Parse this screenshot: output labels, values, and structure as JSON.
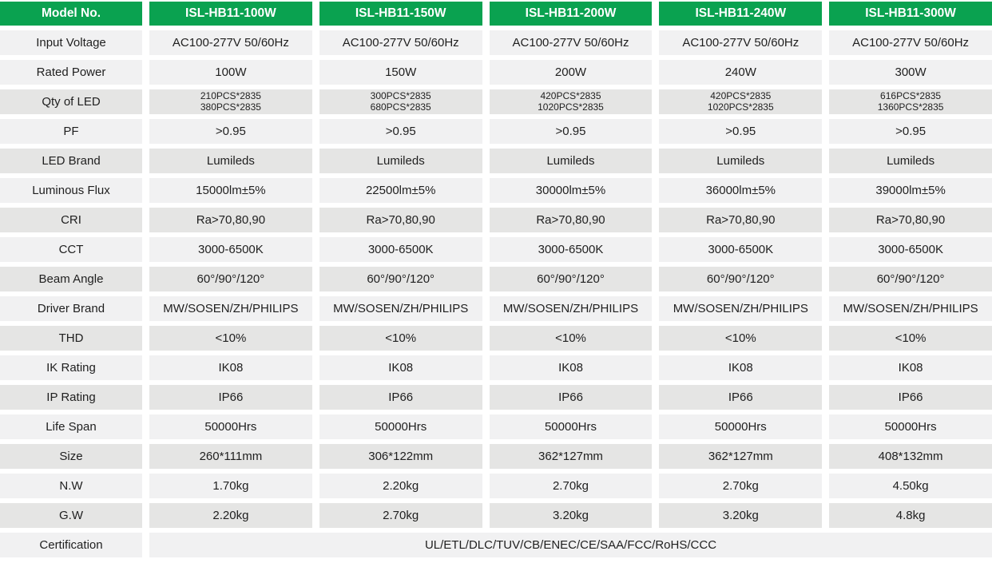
{
  "colors": {
    "header_green": "#0aa250",
    "row_light": "#f1f1f2",
    "row_dark": "#e5e5e4",
    "text_dark": "#1f1f1f",
    "header_text": "#ffffff"
  },
  "table": {
    "header": {
      "label": "Model No.",
      "models": [
        "ISL-HB11-100W",
        "ISL-HB11-150W",
        "ISL-HB11-200W",
        "ISL-HB11-240W",
        "ISL-HB11-300W"
      ]
    },
    "rows": [
      {
        "label": "Input Voltage",
        "values": [
          "AC100-277V 50/60Hz",
          "AC100-277V 50/60Hz",
          "AC100-277V 50/60Hz",
          "AC100-277V 50/60Hz",
          "AC100-277V 50/60Hz"
        ]
      },
      {
        "label": "Rated Power",
        "values": [
          "100W",
          "150W",
          "200W",
          "240W",
          "300W"
        ]
      },
      {
        "label": "Qty of LED",
        "values": [
          "210PCS*2835\n380PCS*2835",
          "300PCS*2835\n680PCS*2835",
          "420PCS*2835\n1020PCS*2835",
          "420PCS*2835\n1020PCS*2835",
          "616PCS*2835\n1360PCS*2835"
        ]
      },
      {
        "label": "PF",
        "values": [
          ">0.95",
          ">0.95",
          ">0.95",
          ">0.95",
          ">0.95"
        ]
      },
      {
        "label": "LED Brand",
        "values": [
          "Lumileds",
          "Lumileds",
          "Lumileds",
          "Lumileds",
          "Lumileds"
        ]
      },
      {
        "label": "Luminous Flux",
        "values": [
          "15000lm±5%",
          "22500lm±5%",
          "30000lm±5%",
          "36000lm±5%",
          "39000lm±5%"
        ]
      },
      {
        "label": "CRI",
        "values": [
          "Ra>70,80,90",
          "Ra>70,80,90",
          "Ra>70,80,90",
          "Ra>70,80,90",
          "Ra>70,80,90"
        ]
      },
      {
        "label": "CCT",
        "values": [
          "3000-6500K",
          "3000-6500K",
          "3000-6500K",
          "3000-6500K",
          "3000-6500K"
        ]
      },
      {
        "label": "Beam Angle",
        "values": [
          "60°/90°/120°",
          "60°/90°/120°",
          "60°/90°/120°",
          "60°/90°/120°",
          "60°/90°/120°"
        ]
      },
      {
        "label": "Driver Brand",
        "values": [
          "MW/SOSEN/ZH/PHILIPS",
          "MW/SOSEN/ZH/PHILIPS",
          "MW/SOSEN/ZH/PHILIPS",
          "MW/SOSEN/ZH/PHILIPS",
          "MW/SOSEN/ZH/PHILIPS"
        ]
      },
      {
        "label": "THD",
        "values": [
          "<10%",
          "<10%",
          "<10%",
          "<10%",
          "<10%"
        ]
      },
      {
        "label": "IK Rating",
        "values": [
          "IK08",
          "IK08",
          "IK08",
          "IK08",
          "IK08"
        ]
      },
      {
        "label": "IP Rating",
        "values": [
          "IP66",
          "IP66",
          "IP66",
          "IP66",
          "IP66"
        ]
      },
      {
        "label": "Life Span",
        "values": [
          "50000Hrs",
          "50000Hrs",
          "50000Hrs",
          "50000Hrs",
          "50000Hrs"
        ]
      },
      {
        "label": "Size",
        "values": [
          "260*111mm",
          "306*122mm",
          "362*127mm",
          "362*127mm",
          "408*132mm"
        ]
      },
      {
        "label": "N.W",
        "values": [
          "1.70kg",
          "2.20kg",
          "2.70kg",
          "2.70kg",
          "4.50kg"
        ]
      },
      {
        "label": "G.W",
        "values": [
          "2.20kg",
          "2.70kg",
          "3.20kg",
          "3.20kg",
          "4.8kg"
        ]
      }
    ],
    "certification": {
      "label": "Certification",
      "value": "UL/ETL/DLC/TUV/CB/ENEC/CE/SAA/FCC/RoHS/CCC"
    }
  }
}
